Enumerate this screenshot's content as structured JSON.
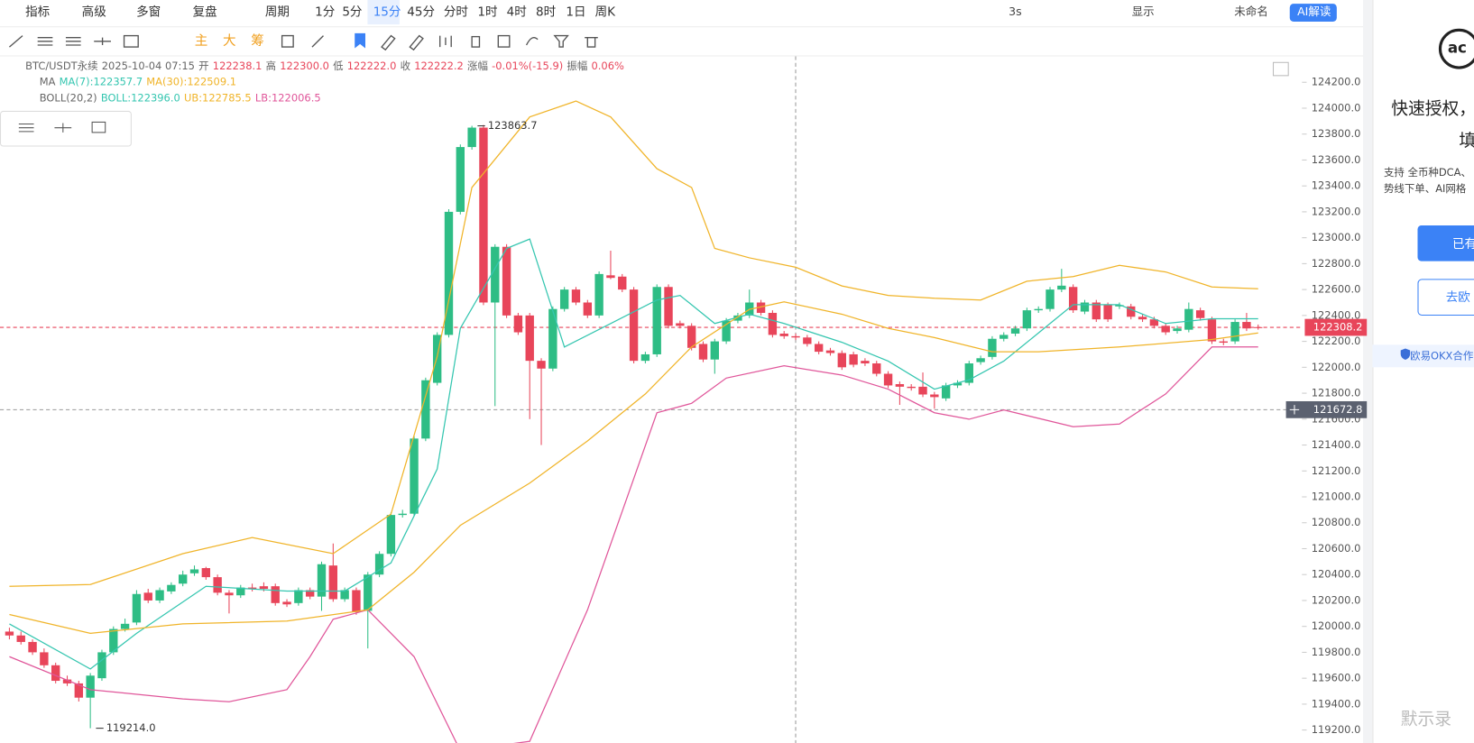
{
  "toolbar": {
    "left": [
      "指标",
      "高级",
      "多窗",
      "复盘",
      "周期",
      "1分",
      "5分",
      "15分",
      "45分",
      "分时",
      "1时",
      "4时",
      "8时",
      "1日",
      "周K"
    ],
    "active": 7,
    "right": [
      "3s",
      "显示",
      "未命名",
      "AI解读"
    ],
    "indicators": [
      "主",
      "大",
      "筹"
    ]
  },
  "info": {
    "symbol": "BTC/USDT永续",
    "time": "2025-10-04 07:15",
    "fields": [
      "开",
      "122238.1",
      "高",
      "122300.0",
      "低",
      "122222.0",
      "收",
      "122222.2",
      "涨幅",
      "-0.01%(-15.9)",
      "振幅",
      "0.06%"
    ],
    "ma": [
      "MA",
      "MA(7):122357.7",
      "MA(30):122509.1"
    ],
    "boll": [
      "BOLL(20,2)",
      "BOLL:122396.0",
      "UB:122785.5",
      "LB:122006.5"
    ]
  },
  "side_panel": {
    "title": [
      "快速授权，",
      "填"
    ],
    "desc": [
      "支持 全币种DCA、",
      "势线下单、AI网格"
    ],
    "buttons": [
      "已有",
      "去欧"
    ],
    "badge": "欧易OKX合作"
  },
  "watermark": "默示录",
  "chart_data": {
    "type": "candlestick",
    "up_color": "#2ebd85",
    "down_color": "#e8455a",
    "ylim": [
      119100,
      124400
    ],
    "yticks": [
      {
        "value": 119200,
        "label": "119200.0"
      },
      {
        "value": 119400,
        "label": "119400.0"
      },
      {
        "value": 119600,
        "label": "119600.0"
      },
      {
        "value": 119800,
        "label": "119800.0"
      },
      {
        "value": 120000,
        "label": "120000.0"
      },
      {
        "value": 120200,
        "label": "120200.0"
      },
      {
        "value": 120400,
        "label": "120400.0"
      },
      {
        "value": 120600,
        "label": "120600.0"
      },
      {
        "value": 120800,
        "label": "120800.0"
      },
      {
        "value": 121000,
        "label": "121000.0"
      },
      {
        "value": 121200,
        "label": "121200.0"
      },
      {
        "value": 121400,
        "label": "121400.0"
      },
      {
        "value": 121600,
        "label": "121600.0"
      },
      {
        "value": 121800,
        "label": "121800.0"
      },
      {
        "value": 122000,
        "label": "122000.0"
      },
      {
        "value": 122200,
        "label": "122200.0"
      },
      {
        "value": 122400,
        "label": "122400.0"
      },
      {
        "value": 122600,
        "label": "122600.0"
      },
      {
        "value": 122800,
        "label": "122800.0"
      },
      {
        "value": 123000,
        "label": "123000.0"
      },
      {
        "value": 123200,
        "label": "123200.0"
      },
      {
        "value": 123400,
        "label": "123400.0"
      },
      {
        "value": 123600,
        "label": "123600.0"
      },
      {
        "value": 123800,
        "label": "123800.0"
      },
      {
        "value": 124000,
        "label": "124000.0"
      },
      {
        "value": 124200,
        "label": "124200.0"
      }
    ],
    "candles": [
      [
        119960,
        119990,
        119900,
        119930
      ],
      [
        119930,
        119960,
        119860,
        119880
      ],
      [
        119880,
        119900,
        119780,
        119800
      ],
      [
        119800,
        119830,
        119680,
        119700
      ],
      [
        119700,
        119720,
        119560,
        119580
      ],
      [
        119590,
        119620,
        119540,
        119560
      ],
      [
        119560,
        119580,
        119420,
        119450
      ],
      [
        119450,
        119640,
        119214,
        119620
      ],
      [
        119600,
        119820,
        119580,
        119800
      ],
      [
        119800,
        120000,
        119780,
        119980
      ],
      [
        119980,
        120060,
        119960,
        120020
      ],
      [
        120030,
        120280,
        120010,
        120250
      ],
      [
        120260,
        120290,
        120180,
        120200
      ],
      [
        120200,
        120300,
        120180,
        120280
      ],
      [
        120270,
        120340,
        120250,
        120320
      ],
      [
        120330,
        120430,
        120310,
        120400
      ],
      [
        120410,
        120470,
        120390,
        120440
      ],
      [
        120450,
        120460,
        120360,
        120380
      ],
      [
        120380,
        120400,
        120240,
        120260
      ],
      [
        120260,
        120280,
        120100,
        120240
      ],
      [
        120240,
        120320,
        120220,
        120300
      ],
      [
        120300,
        120330,
        120270,
        120290
      ],
      [
        120310,
        120340,
        120270,
        120290
      ],
      [
        120310,
        120330,
        120160,
        120180
      ],
      [
        120190,
        120210,
        120150,
        120170
      ],
      [
        120180,
        120300,
        120160,
        120280
      ],
      [
        120280,
        120300,
        120210,
        120230
      ],
      [
        120230,
        120500,
        120120,
        120480
      ],
      [
        120470,
        120640,
        120190,
        120210
      ],
      [
        120210,
        120300,
        120190,
        120280
      ],
      [
        120280,
        120300,
        120090,
        120110
      ],
      [
        120120,
        120420,
        119830,
        120400
      ],
      [
        120400,
        120580,
        120380,
        120560
      ],
      [
        120560,
        120880,
        120540,
        120860
      ],
      [
        120860,
        120900,
        120840,
        120870
      ],
      [
        120870,
        121470,
        120850,
        121450
      ],
      [
        121450,
        121920,
        121430,
        121900
      ],
      [
        121880,
        122270,
        121860,
        122250
      ],
      [
        122250,
        123220,
        122230,
        123200
      ],
      [
        123200,
        123720,
        123180,
        123700
      ],
      [
        123700,
        123864,
        123680,
        123850
      ],
      [
        123850,
        123870,
        122480,
        122500
      ],
      [
        122500,
        122950,
        121700,
        122930
      ],
      [
        122930,
        122950,
        122380,
        122400
      ],
      [
        122400,
        122420,
        122250,
        122270
      ],
      [
        122400,
        122420,
        121600,
        122050
      ],
      [
        122050,
        122070,
        121400,
        121990
      ],
      [
        121990,
        122470,
        121970,
        122450
      ],
      [
        122450,
        122620,
        122430,
        122600
      ],
      [
        122600,
        122620,
        122480,
        122500
      ],
      [
        122500,
        122520,
        122380,
        122400
      ],
      [
        122400,
        122740,
        122380,
        122720
      ],
      [
        122710,
        122900,
        122680,
        122690
      ],
      [
        122700,
        122720,
        122580,
        122600
      ],
      [
        122600,
        122620,
        122030,
        122050
      ],
      [
        122050,
        122120,
        122030,
        122100
      ],
      [
        122100,
        122640,
        122080,
        122620
      ],
      [
        122620,
        122640,
        122300,
        122320
      ],
      [
        122340,
        122360,
        122300,
        122320
      ],
      [
        122320,
        122340,
        122130,
        122150
      ],
      [
        122180,
        122200,
        122040,
        122060
      ],
      [
        122060,
        122220,
        121950,
        122200
      ],
      [
        122200,
        122380,
        122180,
        122360
      ],
      [
        122360,
        122420,
        122340,
        122400
      ],
      [
        122400,
        122600,
        122380,
        122500
      ],
      [
        122500,
        122520,
        122400,
        122420
      ],
      [
        122420,
        122440,
        122230,
        122250
      ],
      [
        122260,
        122280,
        122220,
        122240
      ],
      [
        122240,
        122260,
        122210,
        122230
      ],
      [
        122230,
        122250,
        122160,
        122180
      ],
      [
        122180,
        122200,
        122100,
        122120
      ],
      [
        122130,
        122150,
        122090,
        122110
      ],
      [
        122110,
        122130,
        121980,
        122000
      ],
      [
        122100,
        122120,
        122000,
        122020
      ],
      [
        122050,
        122070,
        122010,
        122030
      ],
      [
        122030,
        122050,
        121930,
        121950
      ],
      [
        121950,
        121970,
        121840,
        121860
      ],
      [
        121870,
        121890,
        121710,
        121850
      ],
      [
        121850,
        121870,
        121820,
        121840
      ],
      [
        121850,
        121960,
        121770,
        121790
      ],
      [
        121790,
        121810,
        121680,
        121770
      ],
      [
        121760,
        121880,
        121740,
        121860
      ],
      [
        121860,
        121900,
        121840,
        121880
      ],
      [
        121880,
        122050,
        121860,
        122030
      ],
      [
        122040,
        122090,
        122020,
        122070
      ],
      [
        122080,
        122240,
        122060,
        122220
      ],
      [
        122220,
        122270,
        122200,
        122250
      ],
      [
        122260,
        122320,
        122240,
        122300
      ],
      [
        122300,
        122460,
        122280,
        122440
      ],
      [
        122440,
        122470,
        122420,
        122450
      ],
      [
        122450,
        122620,
        122430,
        122600
      ],
      [
        122600,
        122760,
        122580,
        122630
      ],
      [
        122620,
        122640,
        122420,
        122440
      ],
      [
        122430,
        122520,
        122410,
        122500
      ],
      [
        122500,
        122520,
        122350,
        122370
      ],
      [
        122480,
        122500,
        122350,
        122370
      ],
      [
        122470,
        122500,
        122450,
        122480
      ],
      [
        122470,
        122490,
        122370,
        122390
      ],
      [
        122390,
        122410,
        122350,
        122370
      ],
      [
        122370,
        122390,
        122300,
        122320
      ],
      [
        122320,
        122340,
        122250,
        122270
      ],
      [
        122280,
        122320,
        122260,
        122300
      ],
      [
        122290,
        122500,
        122270,
        122450
      ],
      [
        122440,
        122460,
        122360,
        122380
      ],
      [
        122370,
        122390,
        122180,
        122200
      ],
      [
        122200,
        122220,
        122170,
        122190
      ],
      [
        122200,
        122370,
        122180,
        122350
      ],
      [
        122350,
        122420,
        122280,
        122300
      ],
      [
        122310,
        122330,
        122290,
        122308
      ]
    ],
    "lines": [
      {
        "color": "#f0b429",
        "x": [
          0,
          7,
          15,
          21,
          28,
          33,
          37,
          40,
          45,
          49,
          52,
          56,
          59,
          61,
          64,
          68,
          72,
          76,
          80,
          84,
          88,
          92,
          96,
          100,
          104,
          108
        ],
        "values": [
          120309,
          120323,
          120562,
          120686,
          120562,
          120867,
          122084,
          123388,
          123932,
          124055,
          123932,
          123533,
          123388,
          122917,
          122845,
          122772,
          122628,
          122555,
          122533,
          122519,
          122664,
          122700,
          122787,
          122736,
          122620,
          122606
        ]
      },
      {
        "color": "#e0569a",
        "x": [
          0,
          7,
          15,
          19,
          24,
          26,
          28,
          31,
          35,
          39,
          45,
          50,
          54,
          56,
          59,
          62,
          67,
          72,
          76,
          80,
          83,
          86,
          92,
          96,
          100,
          104,
          108
        ],
        "values": [
          119766,
          119512,
          119440,
          119418,
          119512,
          119766,
          120055,
          120128,
          119766,
          119040,
          119113,
          120128,
          121142,
          121649,
          121722,
          121917,
          122012,
          121940,
          121831,
          121649,
          121599,
          121671,
          121541,
          121562,
          121794,
          122157,
          122157
        ]
      },
      {
        "color": "#35c6b0",
        "x": [
          0,
          7,
          11,
          17,
          24,
          29,
          33,
          37,
          39,
          43,
          45,
          48,
          52,
          56,
          58,
          61,
          64,
          67,
          72,
          76,
          80,
          83,
          86,
          89,
          92,
          96,
          100,
          104,
          108
        ],
        "values": [
          120019,
          119671,
          119947,
          120309,
          120273,
          120273,
          120490,
          121215,
          122301,
          122917,
          122990,
          122157,
          122338,
          122519,
          122555,
          122338,
          122410,
          122338,
          122193,
          122048,
          121831,
          121903,
          122048,
          122265,
          122483,
          122483,
          122338,
          122374,
          122374
        ]
      },
      {
        "color": "#f0b429",
        "x": [
          0,
          7,
          15,
          24,
          31,
          35,
          39,
          45,
          50,
          55,
          59,
          64,
          67,
          72,
          76,
          80,
          85,
          89,
          96,
          104,
          108
        ],
        "values": [
          120092,
          119947,
          120019,
          120041,
          120128,
          120418,
          120780,
          121106,
          121432,
          121794,
          122157,
          122447,
          122505,
          122410,
          122301,
          122229,
          122120,
          122120,
          122157,
          122215,
          122265
        ]
      }
    ],
    "high_mark": {
      "index": 40,
      "value": 123863.7,
      "label": "123863.7"
    },
    "low_mark": {
      "index": 7,
      "value": 119214.0,
      "label": "119214.0"
    },
    "last_price": {
      "value": 122308.2,
      "label": "122308.2"
    },
    "crosshair": {
      "index": 68,
      "value": 121672.8,
      "label": "121672.8"
    }
  }
}
